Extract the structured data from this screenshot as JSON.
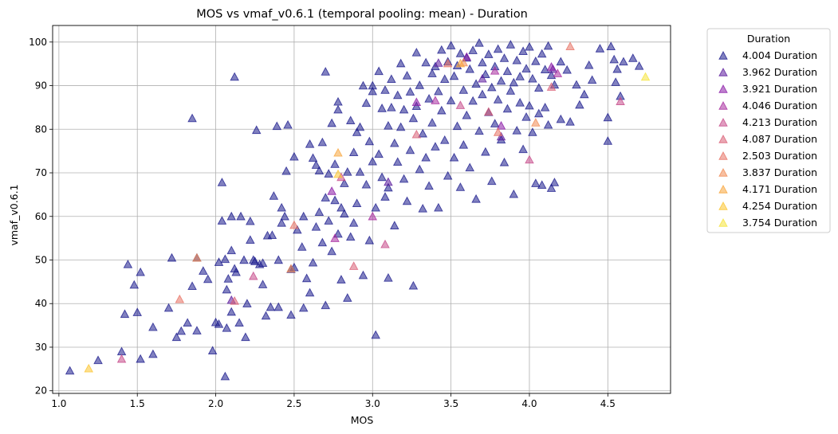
{
  "chart_data": {
    "type": "scatter",
    "title": "MOS vs vmaf_v0.6.1 (temporal pooling: mean) - Duration",
    "xlabel": "MOS",
    "ylabel": "vmaf_v0.6.1",
    "xlim": [
      0.96,
      4.9
    ],
    "ylim": [
      19.4,
      103.8
    ],
    "xticks": [
      "1.0",
      "1.5",
      "2.0",
      "2.5",
      "3.0",
      "3.5",
      "4.0",
      "4.5"
    ],
    "yticks": [
      "20",
      "30",
      "40",
      "50",
      "60",
      "70",
      "80",
      "90",
      "100"
    ],
    "grid": true,
    "marker": "triangle",
    "legend": {
      "title": "Duration",
      "placement": "outside-right-top"
    },
    "series": [
      {
        "name": "4.004 Duration",
        "color": "#1a1a8c",
        "points": [
          [
            1.07,
            24.6
          ],
          [
            1.25,
            27
          ],
          [
            1.4,
            29
          ],
          [
            1.42,
            37.6
          ],
          [
            1.44,
            49
          ],
          [
            1.48,
            44.3
          ],
          [
            1.5,
            38
          ],
          [
            1.52,
            47.2
          ],
          [
            1.52,
            27.3
          ],
          [
            1.6,
            34.6
          ],
          [
            1.6,
            28.4
          ],
          [
            1.7,
            39
          ],
          [
            1.72,
            50.5
          ],
          [
            1.75,
            32.3
          ],
          [
            1.78,
            33.7
          ],
          [
            1.82,
            35.6
          ],
          [
            1.85,
            82.5
          ],
          [
            1.85,
            44
          ],
          [
            1.88,
            33.8
          ],
          [
            1.88,
            50.5
          ],
          [
            1.92,
            47.5
          ],
          [
            1.95,
            45.6
          ],
          [
            1.98,
            29.2
          ],
          [
            2.0,
            35.7
          ],
          [
            2.02,
            35.3
          ],
          [
            2.02,
            49.5
          ],
          [
            2.04,
            59
          ],
          [
            2.04,
            67.8
          ],
          [
            2.06,
            50.2
          ],
          [
            2.06,
            23.3
          ],
          [
            2.07,
            34.4
          ],
          [
            2.07,
            43.2
          ],
          [
            2.08,
            45.7
          ],
          [
            2.1,
            38.1
          ],
          [
            2.12,
            92
          ],
          [
            2.1,
            52.2
          ],
          [
            2.1,
            60
          ],
          [
            2.12,
            48
          ],
          [
            2.13,
            47.2
          ],
          [
            2.15,
            35.6
          ],
          [
            2.16,
            60
          ],
          [
            2.18,
            50
          ],
          [
            2.19,
            32.3
          ],
          [
            2.2,
            40
          ],
          [
            2.22,
            54.6
          ],
          [
            2.22,
            58.9
          ],
          [
            2.24,
            50
          ],
          [
            2.25,
            49.7
          ],
          [
            2.26,
            79.8
          ],
          [
            2.28,
            49
          ],
          [
            2.3,
            49.3
          ],
          [
            2.3,
            44.4
          ],
          [
            2.32,
            37.2
          ],
          [
            2.33,
            55.6
          ],
          [
            2.35,
            39.2
          ],
          [
            2.36,
            55.7
          ],
          [
            2.37,
            64.7
          ],
          [
            2.39,
            80.7
          ],
          [
            2.4,
            50
          ],
          [
            2.4,
            39.2
          ],
          [
            2.42,
            58.5
          ],
          [
            2.42,
            62
          ],
          [
            2.44,
            60
          ],
          [
            2.45,
            70.4
          ],
          [
            2.46,
            81
          ],
          [
            2.48,
            37.4
          ],
          [
            2.48,
            47.9
          ],
          [
            2.5,
            73.7
          ],
          [
            2.5,
            48.3
          ],
          [
            2.52,
            56.9
          ],
          [
            2.55,
            53
          ],
          [
            2.56,
            60
          ],
          [
            2.56,
            39
          ],
          [
            2.58,
            45.8
          ],
          [
            2.6,
            76.6
          ],
          [
            2.6,
            42.5
          ],
          [
            2.62,
            73.4
          ],
          [
            2.62,
            49.4
          ],
          [
            2.64,
            71.8
          ],
          [
            2.64,
            57.6
          ],
          [
            2.66,
            70.5
          ],
          [
            2.66,
            61
          ],
          [
            2.68,
            77
          ],
          [
            2.68,
            54
          ],
          [
            2.7,
            39.6
          ],
          [
            2.7,
            93.2
          ],
          [
            2.7,
            64.3
          ],
          [
            2.72,
            69.8
          ],
          [
            2.72,
            59
          ],
          [
            2.74,
            81.4
          ],
          [
            2.74,
            52
          ],
          [
            2.76,
            72
          ],
          [
            2.76,
            63.7
          ],
          [
            2.78,
            84.5
          ],
          [
            2.78,
            86.3
          ],
          [
            2.78,
            56
          ],
          [
            2.8,
            62
          ],
          [
            2.8,
            45.5
          ],
          [
            2.82,
            67.6
          ],
          [
            2.82,
            60.6
          ],
          [
            2.84,
            70.2
          ],
          [
            2.84,
            41.3
          ],
          [
            2.86,
            82
          ],
          [
            2.86,
            55.3
          ],
          [
            2.88,
            74.7
          ],
          [
            2.88,
            58.5
          ],
          [
            2.9,
            79.3
          ],
          [
            2.9,
            63
          ],
          [
            2.92,
            80.5
          ],
          [
            2.92,
            70.2
          ],
          [
            2.94,
            90
          ],
          [
            2.94,
            46.5
          ],
          [
            2.96,
            86
          ],
          [
            2.96,
            67.3
          ],
          [
            2.98,
            77.2
          ],
          [
            2.98,
            54.5
          ],
          [
            3.0,
            88.7
          ],
          [
            3.0,
            90
          ],
          [
            3.0,
            72.6
          ],
          [
            3.02,
            62
          ],
          [
            3.02,
            32.8
          ],
          [
            3.04,
            93.3
          ],
          [
            3.04,
            74.3
          ],
          [
            3.06,
            84.8
          ],
          [
            3.06,
            69
          ],
          [
            3.08,
            89
          ],
          [
            3.08,
            64.5
          ],
          [
            3.1,
            80.8
          ],
          [
            3.1,
            66.6
          ],
          [
            3.1,
            45.9
          ],
          [
            3.12,
            91.5
          ],
          [
            3.12,
            85
          ],
          [
            3.14,
            76.8
          ],
          [
            3.14,
            57.9
          ],
          [
            3.16,
            87.8
          ],
          [
            3.16,
            72.5
          ],
          [
            3.18,
            95.1
          ],
          [
            3.18,
            80.5
          ],
          [
            3.2,
            84.5
          ],
          [
            3.2,
            68.6
          ],
          [
            3.22,
            92.3
          ],
          [
            3.22,
            63.5
          ],
          [
            3.24,
            75.2
          ],
          [
            3.24,
            88.6
          ],
          [
            3.26,
            82.5
          ],
          [
            3.26,
            44.1
          ],
          [
            3.28,
            97.6
          ],
          [
            3.28,
            85.3
          ],
          [
            3.3,
            90.1
          ],
          [
            3.3,
            70.8
          ],
          [
            3.32,
            79
          ],
          [
            3.32,
            61.8
          ],
          [
            3.34,
            95.3
          ],
          [
            3.34,
            73.5
          ],
          [
            3.36,
            87
          ],
          [
            3.36,
            67
          ],
          [
            3.38,
            92.8
          ],
          [
            3.38,
            81.5
          ],
          [
            3.4,
            94.4
          ],
          [
            3.4,
            76
          ],
          [
            3.42,
            88.7
          ],
          [
            3.42,
            62
          ],
          [
            3.44,
            98.2
          ],
          [
            3.44,
            84.3
          ],
          [
            3.46,
            91.5
          ],
          [
            3.46,
            77.5
          ],
          [
            3.48,
            95.5
          ],
          [
            3.48,
            69.3
          ],
          [
            3.5,
            99.2
          ],
          [
            3.5,
            86.6
          ],
          [
            3.52,
            92.2
          ],
          [
            3.52,
            73.5
          ],
          [
            3.54,
            94.6
          ],
          [
            3.54,
            80.7
          ],
          [
            3.56,
            97.4
          ],
          [
            3.56,
            66.7
          ],
          [
            3.58,
            89
          ],
          [
            3.58,
            76.4
          ],
          [
            3.6,
            96.4
          ],
          [
            3.6,
            83.2
          ],
          [
            3.62,
            93.8
          ],
          [
            3.62,
            71.2
          ],
          [
            3.64,
            98.1
          ],
          [
            3.64,
            86.5
          ],
          [
            3.66,
            90.4
          ],
          [
            3.66,
            64
          ],
          [
            3.68,
            99.8
          ],
          [
            3.68,
            79.6
          ],
          [
            3.7,
            95.3
          ],
          [
            3.7,
            88
          ],
          [
            3.72,
            92.6
          ],
          [
            3.72,
            74.8
          ],
          [
            3.74,
            97.2
          ],
          [
            3.74,
            83.9
          ],
          [
            3.76,
            89.6
          ],
          [
            3.76,
            68.1
          ],
          [
            3.78,
            94.4
          ],
          [
            3.78,
            81.3
          ],
          [
            3.8,
            98.4
          ],
          [
            3.8,
            86.8
          ],
          [
            3.82,
            91.1
          ],
          [
            3.82,
            77.6
          ],
          [
            3.84,
            96.3
          ],
          [
            3.84,
            72.4
          ],
          [
            3.86,
            93.3
          ],
          [
            3.86,
            84.7
          ],
          [
            3.88,
            99.4
          ],
          [
            3.88,
            88.8
          ],
          [
            3.9,
            90.7
          ],
          [
            3.9,
            65.1
          ],
          [
            3.92,
            95.8
          ],
          [
            3.92,
            79.7
          ],
          [
            3.94,
            92.1
          ],
          [
            3.94,
            86.1
          ],
          [
            3.96,
            97.9
          ],
          [
            3.96,
            75.4
          ],
          [
            3.98,
            93.9
          ],
          [
            3.98,
            82.8
          ],
          [
            4.0,
            98.9
          ],
          [
            4.0,
            85.4
          ],
          [
            4.02,
            91.6
          ],
          [
            4.02,
            79.3
          ],
          [
            4.04,
            95.6
          ],
          [
            4.04,
            67.6
          ],
          [
            4.06,
            89.5
          ],
          [
            4.06,
            83.6
          ],
          [
            4.08,
            97.3
          ],
          [
            4.08,
            67.2
          ],
          [
            4.1,
            93.7
          ],
          [
            4.1,
            85
          ],
          [
            4.12,
            99.1
          ],
          [
            4.12,
            81
          ],
          [
            4.14,
            92.4
          ],
          [
            4.14,
            66.5
          ],
          [
            4.16,
            90.2
          ],
          [
            4.16,
            67.8
          ],
          [
            4.2,
            95.5
          ],
          [
            4.2,
            82.3
          ],
          [
            4.24,
            93.6
          ],
          [
            4.26,
            81.7
          ],
          [
            4.3,
            90.2
          ],
          [
            4.32,
            85.6
          ],
          [
            4.35,
            88
          ],
          [
            4.38,
            94.7
          ],
          [
            4.4,
            91.3
          ],
          [
            4.45,
            98.5
          ],
          [
            4.5,
            82.7
          ],
          [
            4.5,
            77.3
          ],
          [
            4.52,
            99
          ],
          [
            4.54,
            96
          ],
          [
            4.55,
            90.8
          ],
          [
            4.56,
            93.8
          ],
          [
            4.58,
            87.6
          ],
          [
            4.6,
            95.5
          ],
          [
            4.66,
            96.3
          ],
          [
            4.7,
            94.5
          ]
        ]
      },
      {
        "name": "3.962 Duration",
        "color": "#5b1a9c",
        "points": [
          [
            2.1,
            40.8
          ],
          [
            3.1,
            67.9
          ],
          [
            3.42,
            95.2
          ],
          [
            3.7,
            91.6
          ],
          [
            3.82,
            78.3
          ],
          [
            4.15,
            93.8
          ]
        ]
      },
      {
        "name": "3.921 Duration",
        "color": "#8a1aa6",
        "points": [
          [
            2.74,
            65.8
          ],
          [
            3.28,
            86.2
          ],
          [
            3.6,
            96.6
          ],
          [
            3.82,
            80.8
          ],
          [
            4.14,
            94.3
          ]
        ]
      },
      {
        "name": "4.046 Duration",
        "color": "#a82b9f",
        "points": [
          [
            2.76,
            55
          ],
          [
            3.0,
            60
          ],
          [
            3.4,
            86.6
          ],
          [
            3.78,
            93.4
          ],
          [
            4.18,
            92.8
          ]
        ]
      },
      {
        "name": "4.213 Duration",
        "color": "#c64a8a",
        "points": [
          [
            1.4,
            27.3
          ],
          [
            2.24,
            46.3
          ],
          [
            2.8,
            69
          ],
          [
            3.08,
            53.6
          ],
          [
            3.56,
            85.5
          ],
          [
            4.0,
            73
          ],
          [
            4.58,
            86.4
          ]
        ]
      },
      {
        "name": "4.087 Duration",
        "color": "#d95e75",
        "points": [
          [
            2.12,
            40.6
          ],
          [
            2.88,
            48.6
          ],
          [
            3.28,
            78.8
          ],
          [
            3.74,
            84
          ],
          [
            4.14,
            89.7
          ]
        ]
      },
      {
        "name": "2.503 Duration",
        "color": "#e77264",
        "points": [
          [
            1.77,
            41
          ],
          [
            2.5,
            58
          ],
          [
            3.48,
            95.1
          ],
          [
            3.8,
            79.3
          ],
          [
            4.26,
            99
          ]
        ]
      },
      {
        "name": "3.837 Duration",
        "color": "#f08a52",
        "points": [
          [
            1.88,
            50.5
          ],
          [
            2.48,
            48
          ],
          [
            3.58,
            95.3
          ],
          [
            4.04,
            81.5
          ]
        ]
      },
      {
        "name": "4.171 Duration",
        "color": "#f7a53c",
        "points": [
          [
            2.78,
            74.6
          ],
          [
            3.56,
            95.1
          ]
        ]
      },
      {
        "name": "4.254 Duration",
        "color": "#fbc42e",
        "points": [
          [
            1.19,
            25.1
          ],
          [
            2.78,
            69.7
          ]
        ]
      },
      {
        "name": "3.754 Duration",
        "color": "#f5e33a",
        "points": [
          [
            4.74,
            92
          ]
        ]
      }
    ]
  }
}
